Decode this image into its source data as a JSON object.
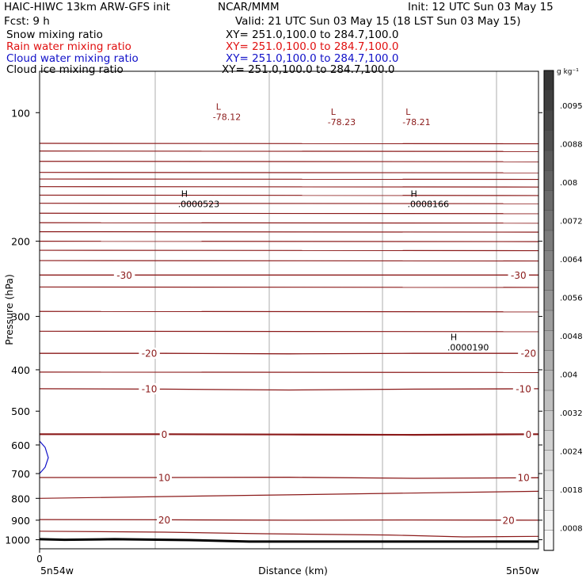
{
  "header": {
    "title_left": "HAIC-HIWC 13km ARW-GFS init",
    "org": "NCAR/MMM",
    "init": "Init: 12 UTC Sun 03 May 15",
    "fcst": "Fcst:     9 h",
    "valid": "Valid: 21 UTC Sun 03 May 15 (18 LST Sun 03 May 15)",
    "fields": [
      {
        "name": "Snow mixing ratio",
        "xy": "XY= 251.0,100.0 to 284.7,100.0",
        "color": "#000000"
      },
      {
        "name": "Rain water mixing ratio",
        "xy": "XY= 251.0,100.0 to 284.7,100.0",
        "color": "#e01010"
      },
      {
        "name": "Cloud water mixing ratio",
        "xy": "XY= 251.0,100.0 to 284.7,100.0",
        "color": "#1010c8"
      },
      {
        "name": "Cloud ice mixing ratio",
        "xy": "XY= 251.0,100.0 to 284.7,100.0",
        "color": "#000000"
      }
    ]
  },
  "chart_data": {
    "type": "contour",
    "ylabel": "Pressure (hPa)",
    "xlabel": "Distance (km)",
    "x_start_label": "5n54w",
    "x_end_label": "5n50w",
    "x_tick_label": "0",
    "y_scale": "log",
    "ylim": [
      1050,
      80
    ],
    "y_ticks": [
      100,
      200,
      300,
      400,
      500,
      600,
      700,
      800,
      900,
      1000
    ],
    "temperature_contour_color": "#8b1a1a",
    "temperature_contours": [
      {
        "label": "-30",
        "p": [
          240,
          240,
          240,
          240,
          240
        ]
      },
      {
        "label": "-20",
        "p": [
          366,
          366,
          367,
          366,
          366
        ]
      },
      {
        "label": "-10",
        "p": [
          443,
          444,
          446,
          444,
          443
        ]
      },
      {
        "label": "0",
        "p": [
          566,
          566,
          567,
          568,
          566
        ]
      },
      {
        "label": "10",
        "p": [
          715,
          715,
          714,
          718,
          716
        ]
      },
      {
        "label": "20",
        "p": [
          897,
          898,
          900,
          899,
          900
        ]
      }
    ],
    "temperature_labels": [
      {
        "label": "-30",
        "x": 0.17,
        "p": 240
      },
      {
        "label": "-30",
        "x": 0.96,
        "p": 240
      },
      {
        "label": "-20",
        "x": 0.22,
        "p": 366
      },
      {
        "label": "-20",
        "x": 0.98,
        "p": 366
      },
      {
        "label": "-10",
        "x": 0.22,
        "p": 443
      },
      {
        "label": "-10",
        "x": 0.97,
        "p": 443
      },
      {
        "label": "0",
        "x": 0.25,
        "p": 566
      },
      {
        "label": "0",
        "x": 0.98,
        "p": 566
      },
      {
        "label": "10",
        "x": 0.25,
        "p": 715
      },
      {
        "label": "10",
        "x": 0.97,
        "p": 715
      },
      {
        "label": "20",
        "x": 0.25,
        "p": 898
      },
      {
        "label": "20",
        "x": 0.94,
        "p": 900
      }
    ],
    "extrema": [
      {
        "marker": "L",
        "value": "-78.12",
        "x": 0.36,
        "p": 100,
        "color": "#8b1a1a"
      },
      {
        "marker": "L",
        "value": "-78.23",
        "x": 0.59,
        "p": 103,
        "color": "#8b1a1a"
      },
      {
        "marker": "L",
        "value": "-78.21",
        "x": 0.74,
        "p": 103,
        "color": "#8b1a1a"
      },
      {
        "marker": "H",
        "value": ".0000523",
        "x": 0.29,
        "p": 160,
        "color": "#000000"
      },
      {
        "marker": "H",
        "value": ".0008166",
        "x": 0.75,
        "p": 160,
        "color": "#000000"
      },
      {
        "marker": "H",
        "value": ".0000190",
        "x": 0.83,
        "p": 347,
        "color": "#000000"
      }
    ],
    "colorbar": {
      "unit": "g kg⁻¹",
      "labels": [
        ".0095",
        ".0088",
        ".008",
        ".0072",
        ".0064",
        ".0056",
        ".0048",
        ".004",
        ".0032",
        ".0024",
        ".0018",
        ".0008"
      ]
    }
  }
}
